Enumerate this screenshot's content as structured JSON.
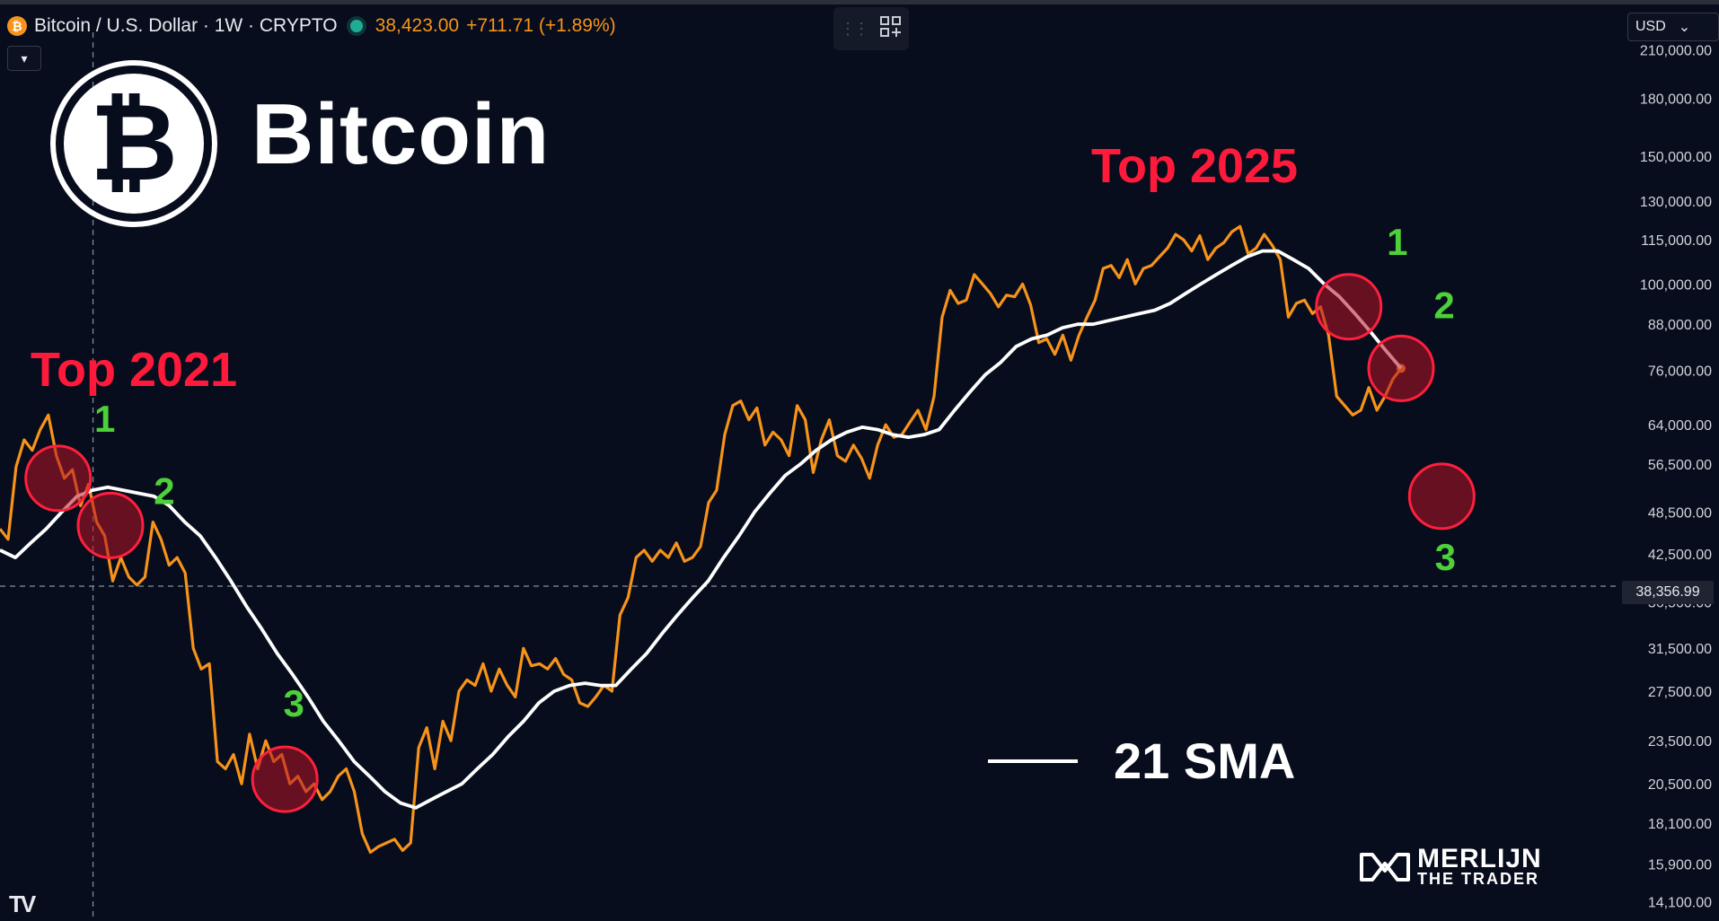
{
  "header": {
    "coin_badge": "₿",
    "symbol_title": "Bitcoin / U.S. Dollar · 1W · CRYPTO",
    "last_price": "38,423.00",
    "change": "+711.71 (+1.89%)",
    "collapse_icon": "▾",
    "currency": "USD",
    "currency_chevron": "⌄"
  },
  "overlay": {
    "brand_word": "Bitcoin",
    "top_left_label": "Top 2021",
    "top_right_label": "Top 2025",
    "legend_label": "21 SMA",
    "current_price_label": "38,356.99",
    "watermark_name": "MERLIJN",
    "watermark_sub": "THE TRADER",
    "tradingview_mark": "TV"
  },
  "chart_data": {
    "type": "line",
    "yscale": "log",
    "ylim": [
      13500,
      222000
    ],
    "y_ticks": [
      210000,
      180000,
      150000,
      130000,
      115000,
      100000,
      88000,
      76000,
      64000,
      56500,
      48500,
      42500,
      38356.99,
      36500,
      31500,
      27500,
      23500,
      20500,
      18100,
      15900,
      14100
    ],
    "y_tick_labels": [
      "210,000.00",
      "180,000.00",
      "150,000.00",
      "130,000.00",
      "115,000.00",
      "100,000.00",
      "88,000.00",
      "76,000.00",
      "64,000.00",
      "56,500.00",
      "48,500.00",
      "42,500.00",
      "38,356.99",
      "36,500.00",
      "31,500.00",
      "27,500.00",
      "23,500.00",
      "20,500.00",
      "18,100.00",
      "15,900.00",
      "14,100.00"
    ],
    "x_index_range": [
      0,
      241
    ],
    "series": [
      {
        "color": "#f7931a",
        "values": [
          46000,
          44500,
          56000,
          61000,
          59000,
          63000,
          66000,
          58000,
          54000,
          55500,
          49500,
          53000,
          47000,
          45000,
          39000,
          42000,
          39500,
          38500,
          39500,
          47000,
          44500,
          41000,
          42000,
          40000,
          31500,
          29500,
          30000,
          22000,
          21500,
          22500,
          20500,
          24000,
          21500,
          23500,
          22000,
          22500,
          20500,
          21000,
          20000,
          20500,
          19500,
          20000,
          21000,
          21500,
          20000,
          17500,
          16500,
          16800,
          17000,
          17200,
          16600,
          17000,
          23000,
          24500,
          21500,
          25000,
          23500,
          27500,
          28500,
          28000,
          30000,
          27500,
          29500,
          28000,
          27000,
          31500,
          29800,
          30000,
          29500,
          30500,
          29000,
          28500,
          26500,
          26200,
          27000,
          28000,
          27500,
          35000,
          37000,
          42000,
          43000,
          41500,
          43000,
          42000,
          44000,
          41500,
          42000,
          43500,
          50000,
          52000,
          62000,
          68000,
          69000,
          65000,
          67500,
          60000,
          62500,
          61000,
          58000,
          68000,
          65000,
          55000,
          61000,
          65000,
          58000,
          57000,
          60000,
          57500,
          54000,
          60000,
          64000,
          61500,
          62000,
          64500,
          67000,
          63000,
          70000,
          90000,
          98000,
          94000,
          95000,
          103000,
          100000,
          97000,
          93000,
          96500,
          96000,
          100000,
          93500,
          83000,
          84000,
          80000,
          85000,
          78500,
          85000,
          90000,
          95000,
          105000,
          106000,
          102000,
          108000,
          100000,
          105000,
          106000,
          109000,
          112000,
          117000,
          115000,
          111000,
          116500,
          108000,
          112000,
          114000,
          118000,
          120000,
          110000,
          112000,
          117000,
          113000,
          108000,
          90000,
          94000,
          95000,
          91000,
          93000,
          85000,
          70000,
          68000,
          66000,
          67000,
          72000,
          67000,
          70000,
          74000,
          76500
        ],
        "x_start": 0
      },
      {
        "name": "21 SMA",
        "color": "#ffffff",
        "values": [
          43000,
          42000,
          44000,
          46000,
          48500,
          51000,
          52000,
          52500,
          52000,
          51500,
          51000,
          49500,
          47000,
          45000,
          42000,
          39000,
          36000,
          33500,
          31000,
          29000,
          27000,
          25000,
          23500,
          22000,
          21000,
          20000,
          19300,
          19000,
          19500,
          20000,
          20500,
          21500,
          22500,
          23800,
          25000,
          26500,
          27500,
          28000,
          28200,
          28000,
          28000,
          29500,
          31000,
          33000,
          35000,
          37000,
          39000,
          42000,
          45000,
          48500,
          51500,
          54500,
          56500,
          59000,
          61000,
          62500,
          63500,
          63000,
          62000,
          61500,
          62000,
          63000,
          67000,
          71000,
          75000,
          78000,
          82000,
          84000,
          85000,
          87000,
          88000,
          88000,
          89000,
          90000,
          91000,
          92000,
          94000,
          97000,
          100000,
          103000,
          106000,
          109000,
          111000,
          111000,
          108000,
          105000,
          100000,
          96000,
          91000,
          86000,
          81000,
          76500
        ],
        "x_start": 150,
        "x_step": 1
      }
    ],
    "markers": [
      {
        "label": "1",
        "x": 10,
        "y": 54000
      },
      {
        "label": "2",
        "x": 19,
        "y": 46500
      },
      {
        "label": "3",
        "x": 49,
        "y": 20800
      },
      {
        "label": "1",
        "x": 232,
        "y": 93000
      },
      {
        "label": "2",
        "x": 241,
        "y": 76500
      },
      {
        "label": "3",
        "x": 248,
        "y": 51000
      }
    ],
    "crosshair": {
      "x_index": 16,
      "y_value": 38356.99
    },
    "grid": false,
    "legend": "bottom-right"
  }
}
